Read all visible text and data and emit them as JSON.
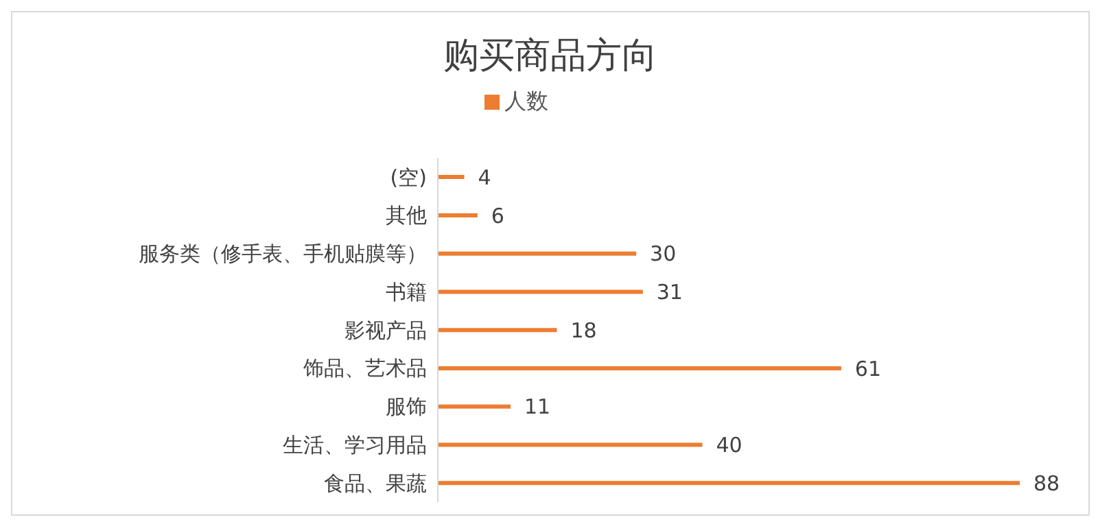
{
  "chart_data": {
    "type": "bar",
    "orientation": "horizontal",
    "title": "购买商品方向",
    "categories": [
      "(空)",
      "其他",
      "服务类（修手表、手机贴膜等）",
      "书籍",
      "影视产品",
      "饰品、艺术品",
      "服饰",
      "生活、学习用品",
      "食品、果蔬"
    ],
    "series": [
      {
        "name": "人数",
        "color": "#ed7d31",
        "values": [
          4,
          6,
          30,
          31,
          18,
          61,
          11,
          40,
          88
        ]
      }
    ],
    "data_labels": true,
    "legend": "top",
    "grid": false,
    "tick_labels": "y"
  }
}
